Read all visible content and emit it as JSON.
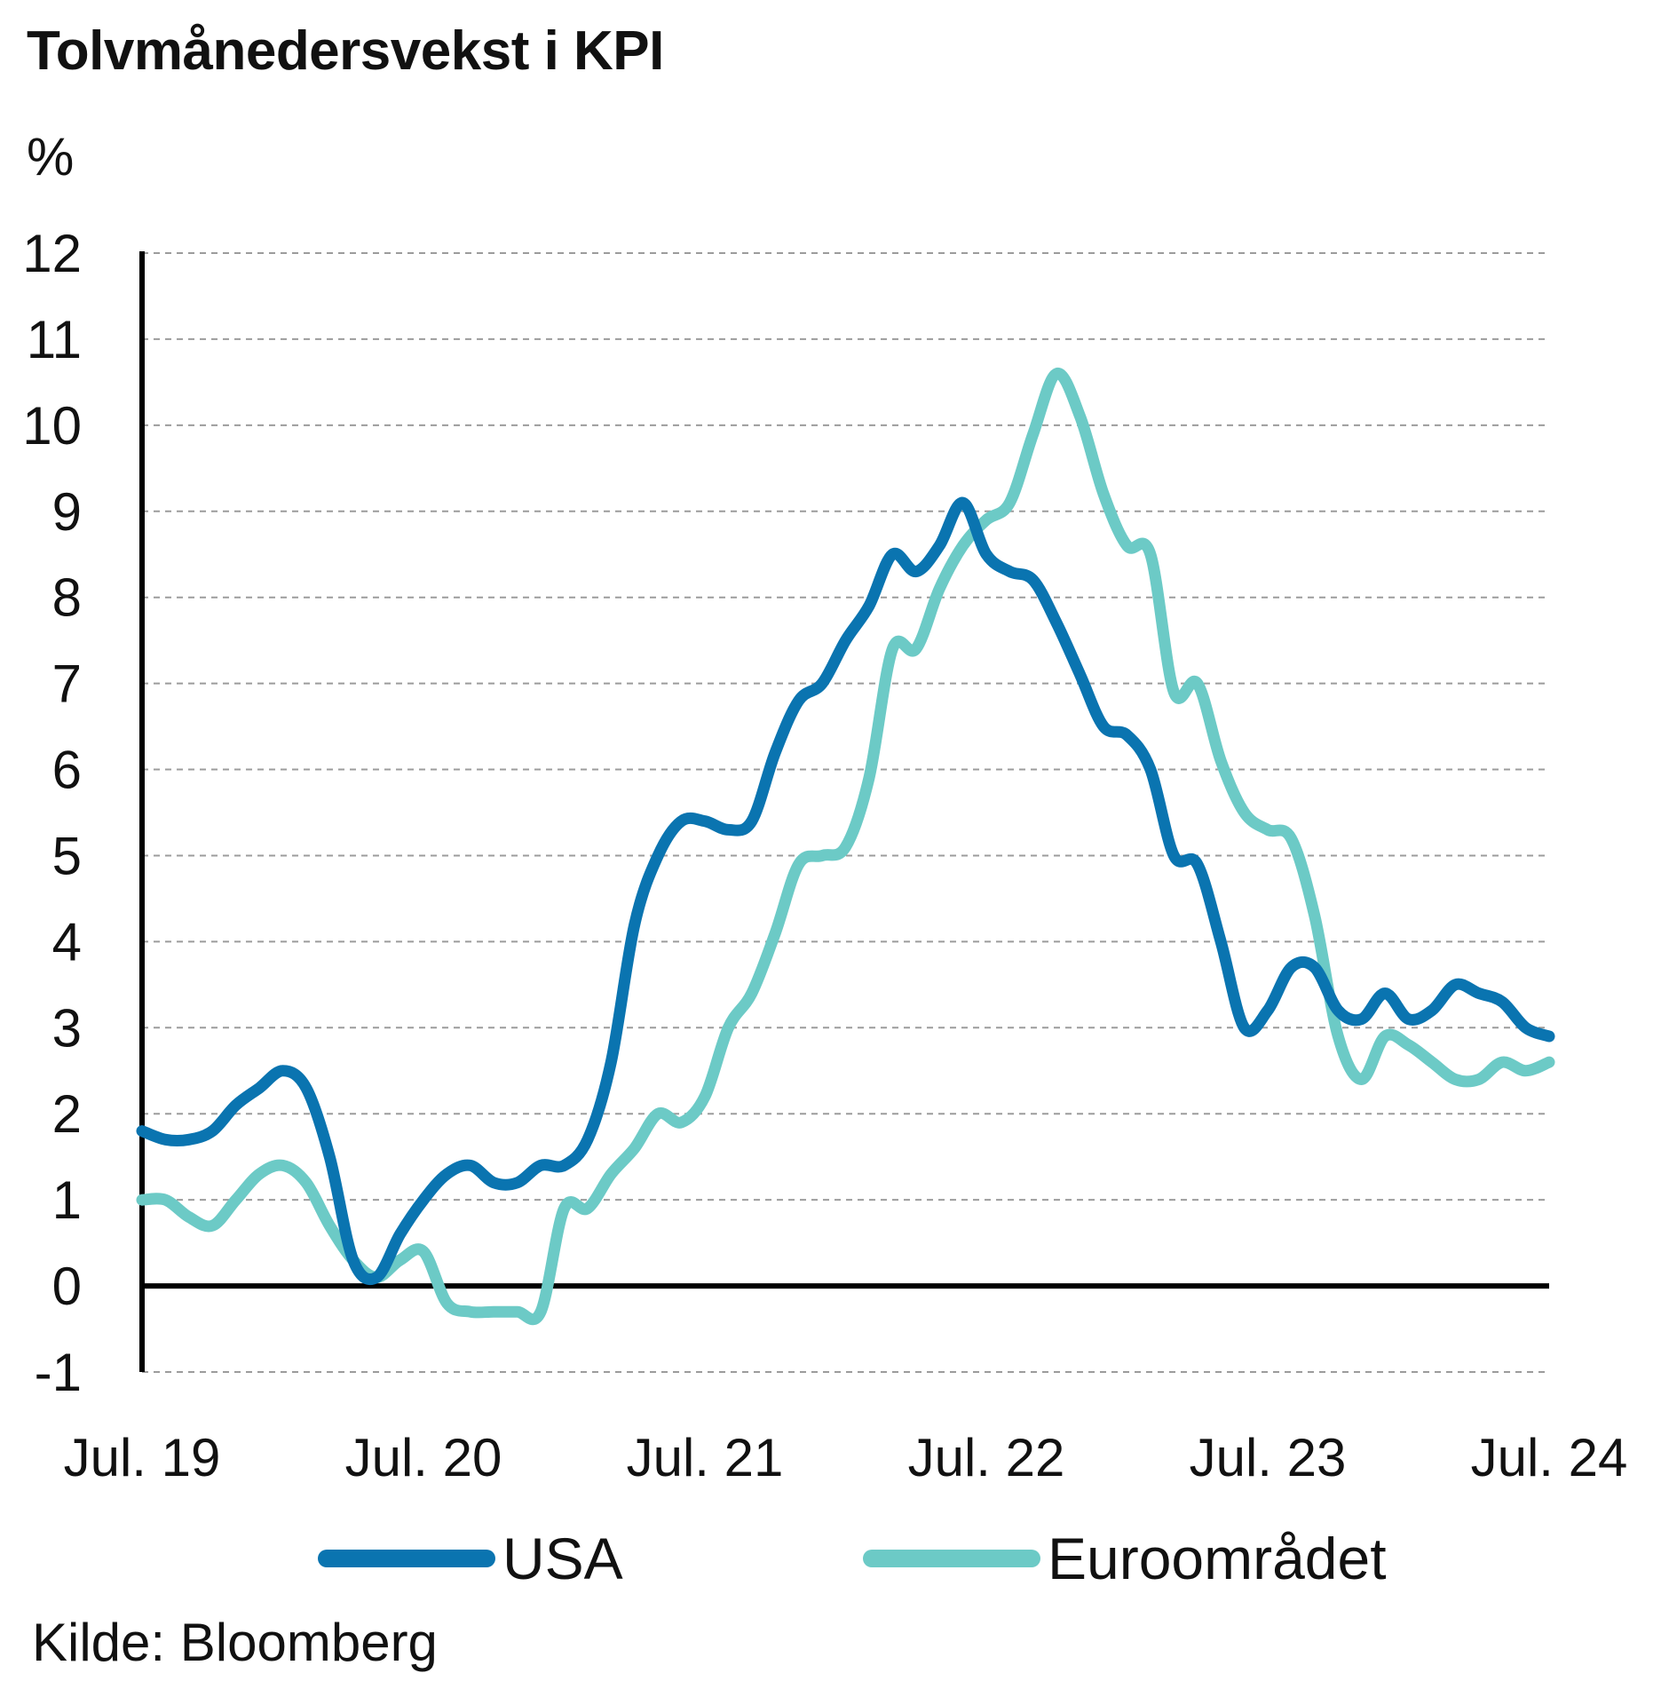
{
  "chart_data": {
    "type": "line",
    "title": "Tolvmånedersvekst i KPI",
    "ylabel": "%",
    "ylim": [
      -1,
      12
    ],
    "yticks": [
      "12",
      "11",
      "10",
      "9",
      "8",
      "7",
      "6",
      "5",
      "4",
      "3",
      "2",
      "1",
      "0",
      "-1"
    ],
    "xlim": [
      "2019-07",
      "2024-07"
    ],
    "xticks": [
      "Jul. 19",
      "Jul. 20",
      "Jul. 21",
      "Jul. 22",
      "Jul. 23",
      "Jul. 24"
    ],
    "grid": true,
    "legend_position": "bottom",
    "source": "Kilde: Bloomberg",
    "x": [
      "2019-07",
      "2019-08",
      "2019-09",
      "2019-10",
      "2019-11",
      "2019-12",
      "2020-01",
      "2020-02",
      "2020-03",
      "2020-04",
      "2020-05",
      "2020-06",
      "2020-07",
      "2020-08",
      "2020-09",
      "2020-10",
      "2020-11",
      "2020-12",
      "2021-01",
      "2021-02",
      "2021-03",
      "2021-04",
      "2021-05",
      "2021-06",
      "2021-07",
      "2021-08",
      "2021-09",
      "2021-10",
      "2021-11",
      "2021-12",
      "2022-01",
      "2022-02",
      "2022-03",
      "2022-04",
      "2022-05",
      "2022-06",
      "2022-07",
      "2022-08",
      "2022-09",
      "2022-10",
      "2022-11",
      "2022-12",
      "2023-01",
      "2023-02",
      "2023-03",
      "2023-04",
      "2023-05",
      "2023-06",
      "2023-07",
      "2023-08",
      "2023-09",
      "2023-10",
      "2023-11",
      "2023-12",
      "2024-01",
      "2024-02",
      "2024-03",
      "2024-04",
      "2024-05",
      "2024-06",
      "2024-07"
    ],
    "series": [
      {
        "name": "USA",
        "color": "#0a74b0",
        "values": [
          1.8,
          1.7,
          1.7,
          1.8,
          2.1,
          2.3,
          2.5,
          2.3,
          1.5,
          0.3,
          0.1,
          0.6,
          1.0,
          1.3,
          1.4,
          1.2,
          1.2,
          1.4,
          1.4,
          1.7,
          2.6,
          4.2,
          5.0,
          5.4,
          5.4,
          5.3,
          5.4,
          6.2,
          6.8,
          7.0,
          7.5,
          7.9,
          8.5,
          8.3,
          8.6,
          9.1,
          8.5,
          8.3,
          8.2,
          7.7,
          7.1,
          6.5,
          6.4,
          6.0,
          5.0,
          4.9,
          4.0,
          3.0,
          3.2,
          3.7,
          3.7,
          3.2,
          3.1,
          3.4,
          3.1,
          3.2,
          3.5,
          3.4,
          3.3,
          3.0,
          2.9
        ]
      },
      {
        "name": "Euroområdet",
        "color": "#6ccac6",
        "values": [
          1.0,
          1.0,
          0.8,
          0.7,
          1.0,
          1.3,
          1.4,
          1.2,
          0.7,
          0.3,
          0.1,
          0.3,
          0.4,
          -0.2,
          -0.3,
          -0.3,
          -0.3,
          -0.3,
          0.9,
          0.9,
          1.3,
          1.6,
          2.0,
          1.9,
          2.2,
          3.0,
          3.4,
          4.1,
          4.9,
          5.0,
          5.1,
          5.9,
          7.4,
          7.4,
          8.1,
          8.6,
          8.9,
          9.1,
          9.9,
          10.6,
          10.1,
          9.2,
          8.6,
          8.5,
          6.9,
          7.0,
          6.1,
          5.5,
          5.3,
          5.2,
          4.3,
          2.9,
          2.4,
          2.9,
          2.8,
          2.6,
          2.4,
          2.4,
          2.6,
          2.5,
          2.6
        ]
      }
    ]
  }
}
